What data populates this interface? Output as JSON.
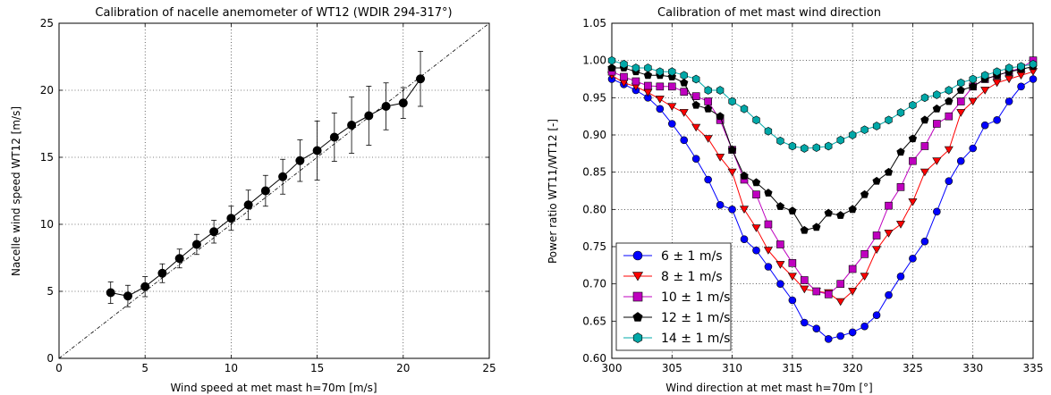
{
  "chart_data": [
    {
      "type": "scatter",
      "title": "Calibration of nacelle anemometer of WT12 (WDIR 294-317°)",
      "xlabel": "Wind speed at met mast h=70m [m/s]",
      "ylabel": "Nacelle wind speed WT12 [m/s]",
      "xlim": [
        0,
        25
      ],
      "ylim": [
        0,
        25
      ],
      "xticks": [
        0,
        5,
        10,
        15,
        20,
        25
      ],
      "yticks": [
        0,
        5,
        10,
        15,
        20,
        25
      ],
      "grid": true,
      "reference_line": "y = x",
      "marker_color": "#000000",
      "series": [
        {
          "x": [
            3,
            4,
            5,
            6,
            7,
            8,
            9,
            10,
            11,
            12,
            13,
            14,
            15,
            16,
            17,
            18,
            19,
            20,
            21
          ],
          "y": [
            4.9,
            4.65,
            5.35,
            6.35,
            7.45,
            8.5,
            9.45,
            10.45,
            11.45,
            12.5,
            13.55,
            14.75,
            15.5,
            16.5,
            17.4,
            18.1,
            18.8,
            19.05,
            20.85
          ],
          "err": [
            0.8,
            0.8,
            0.75,
            0.7,
            0.7,
            0.75,
            0.85,
            0.9,
            1.1,
            1.15,
            1.3,
            1.55,
            2.2,
            1.8,
            2.1,
            2.2,
            1.75,
            1.15,
            2.05
          ]
        }
      ]
    },
    {
      "type": "line",
      "title": "Calibration of met mast wind direction",
      "xlabel": "Wind direction at met mast h=70m [°]",
      "ylabel": "Power ratio WT11/WT12 [-]",
      "xlim": [
        300,
        335
      ],
      "ylim": [
        0.6,
        1.05
      ],
      "xticks": [
        300,
        305,
        310,
        315,
        320,
        325,
        330,
        335
      ],
      "yticks": [
        0.6,
        0.65,
        0.7,
        0.75,
        0.8,
        0.85,
        0.9,
        0.95,
        1.0,
        1.05
      ],
      "grid": true,
      "legend_position": "lower-left",
      "x": [
        300,
        301,
        302,
        303,
        304,
        305,
        306,
        307,
        308,
        309,
        310,
        311,
        312,
        313,
        314,
        315,
        316,
        317,
        318,
        319,
        320,
        321,
        322,
        323,
        324,
        325,
        326,
        327,
        328,
        329,
        330,
        331,
        332,
        333,
        334,
        335
      ],
      "series": [
        {
          "name": "6 ± 1 m/s",
          "color": "#0000ff",
          "marker": "circle",
          "values": [
            0.975,
            0.968,
            0.96,
            0.95,
            0.935,
            0.915,
            0.893,
            0.868,
            0.84,
            0.806,
            0.8,
            0.76,
            0.745,
            0.723,
            0.7,
            0.678,
            0.648,
            0.64,
            0.626,
            0.63,
            0.635,
            0.643,
            0.658,
            0.685,
            0.71,
            0.734,
            0.757,
            0.797,
            0.838,
            0.865,
            0.882,
            0.913,
            0.92,
            0.945,
            0.965,
            0.975
          ]
        },
        {
          "name": "8 ± 1 m/s",
          "color": "#ff0000",
          "marker": "triangle-down",
          "values": [
            0.98,
            0.97,
            0.965,
            0.957,
            0.948,
            0.938,
            0.93,
            0.91,
            0.895,
            0.87,
            0.85,
            0.8,
            0.775,
            0.745,
            0.726,
            0.71,
            0.693,
            0.69,
            0.688,
            0.676,
            0.69,
            0.71,
            0.746,
            0.768,
            0.78,
            0.81,
            0.85,
            0.865,
            0.88,
            0.93,
            0.945,
            0.96,
            0.97,
            0.975,
            0.98,
            0.985
          ]
        },
        {
          "name": "10 ± 1 m/s",
          "color": "#bf00bf",
          "marker": "square",
          "values": [
            0.985,
            0.978,
            0.972,
            0.966,
            0.965,
            0.965,
            0.958,
            0.952,
            0.945,
            0.92,
            0.88,
            0.84,
            0.82,
            0.78,
            0.753,
            0.728,
            0.705,
            0.69,
            0.686,
            0.7,
            0.72,
            0.74,
            0.765,
            0.805,
            0.83,
            0.865,
            0.885,
            0.915,
            0.925,
            0.945,
            0.965,
            0.975,
            0.98,
            0.985,
            0.99,
            1.0
          ]
        },
        {
          "name": "12 ± 1 m/s",
          "color": "#000000",
          "marker": "pentagon",
          "values": [
            0.99,
            0.99,
            0.985,
            0.98,
            0.98,
            0.978,
            0.97,
            0.94,
            0.935,
            0.925,
            0.88,
            0.845,
            0.836,
            0.822,
            0.804,
            0.798,
            0.772,
            0.776,
            0.795,
            0.792,
            0.8,
            0.82,
            0.838,
            0.85,
            0.877,
            0.895,
            0.92,
            0.935,
            0.945,
            0.96,
            0.965,
            0.975,
            0.98,
            0.985,
            0.988,
            0.992
          ]
        },
        {
          "name": "14 ± 1 m/s",
          "color": "#00a8a8",
          "marker": "hexagon",
          "values": [
            1.0,
            0.995,
            0.99,
            0.99,
            0.985,
            0.985,
            0.98,
            0.975,
            0.96,
            0.96,
            0.945,
            0.935,
            0.92,
            0.905,
            0.892,
            0.885,
            0.882,
            0.883,
            0.885,
            0.893,
            0.9,
            0.907,
            0.912,
            0.92,
            0.93,
            0.94,
            0.95,
            0.954,
            0.96,
            0.97,
            0.975,
            0.98,
            0.985,
            0.99,
            0.992,
            0.995
          ]
        }
      ]
    }
  ]
}
